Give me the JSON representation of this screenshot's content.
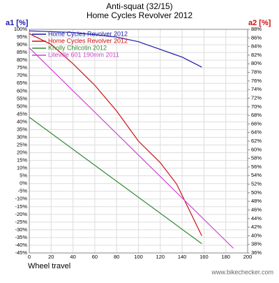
{
  "chart_data": {
    "type": "line",
    "title": "Anti-squat (32/15)",
    "subtitle": "Home Cycles Revolver 2012",
    "ylabel": "a1 [%]",
    "y2label": "a2 [%]",
    "xlabel": "Wheel travel",
    "watermark": "www.bikechecker.com",
    "grid": true,
    "legend": "upper left",
    "xlim": [
      0,
      200
    ],
    "xticks": [
      0,
      20,
      40,
      60,
      80,
      100,
      120,
      140,
      160,
      180,
      200
    ],
    "ylim": [
      -45,
      100
    ],
    "yticks": [
      {
        "value": 100,
        "label": "100%"
      },
      {
        "value": 95,
        "label": "95%"
      },
      {
        "value": 90,
        "label": "90%"
      },
      {
        "value": 85,
        "label": "85%"
      },
      {
        "value": 80,
        "label": "80%"
      },
      {
        "value": 75,
        "label": "75%"
      },
      {
        "value": 70,
        "label": "70%"
      },
      {
        "value": 65,
        "label": "65%"
      },
      {
        "value": 60,
        "label": "60%"
      },
      {
        "value": 55,
        "label": "55%"
      },
      {
        "value": 50,
        "label": "50%"
      },
      {
        "value": 45,
        "label": "45%"
      },
      {
        "value": 40,
        "label": "40%"
      },
      {
        "value": 35,
        "label": "35%"
      },
      {
        "value": 30,
        "label": "30%"
      },
      {
        "value": 25,
        "label": "25%"
      },
      {
        "value": 20,
        "label": "20%"
      },
      {
        "value": 15,
        "label": "15%"
      },
      {
        "value": 10,
        "label": "10%"
      },
      {
        "value": 5,
        "label": "5%"
      },
      {
        "value": 0,
        "label": "0%"
      },
      {
        "value": -5,
        "label": "-5%"
      },
      {
        "value": -10,
        "label": "-10%"
      },
      {
        "value": -15,
        "label": "-15%"
      },
      {
        "value": -20,
        "label": "-20%"
      },
      {
        "value": -25,
        "label": "-25%"
      },
      {
        "value": -30,
        "label": "-30%"
      },
      {
        "value": -35,
        "label": "-35%"
      },
      {
        "value": -40,
        "label": "-40%"
      },
      {
        "value": -45,
        "label": "-45%"
      }
    ],
    "y2lim": [
      36,
      88
    ],
    "y2ticks": [
      {
        "value": 88,
        "label": "88%"
      },
      {
        "value": 86,
        "label": "86%"
      },
      {
        "value": 84,
        "label": "84%"
      },
      {
        "value": 82,
        "label": "82%"
      },
      {
        "value": 80,
        "label": "80%"
      },
      {
        "value": 78,
        "label": "78%"
      },
      {
        "value": 76,
        "label": "76%"
      },
      {
        "value": 74,
        "label": "74%"
      },
      {
        "value": 72,
        "label": "72%"
      },
      {
        "value": 70,
        "label": "70%"
      },
      {
        "value": 68,
        "label": "68%"
      },
      {
        "value": 66,
        "label": "66%"
      },
      {
        "value": 64,
        "label": "64%"
      },
      {
        "value": 62,
        "label": "62%"
      },
      {
        "value": 60,
        "label": "60%"
      },
      {
        "value": 58,
        "label": "58%"
      },
      {
        "value": 56,
        "label": "56%"
      },
      {
        "value": 54,
        "label": "54%"
      },
      {
        "value": 52,
        "label": "52%"
      },
      {
        "value": 50,
        "label": "50%"
      },
      {
        "value": 48,
        "label": "48%"
      },
      {
        "value": 46,
        "label": "46%"
      },
      {
        "value": 44,
        "label": "44%"
      },
      {
        "value": 42,
        "label": "42%"
      },
      {
        "value": 40,
        "label": "40%"
      },
      {
        "value": 38,
        "label": "38%"
      },
      {
        "value": 36,
        "label": "36%"
      }
    ],
    "series": [
      {
        "name": "Home Cycles Revolver 2012",
        "color": "#1a1aa8",
        "x": [
          0,
          40,
          80,
          100,
          120,
          140,
          158
        ],
        "values": [
          99,
          98,
          95,
          92,
          87,
          82,
          75.5
        ]
      },
      {
        "name": "Home Cycles Revolver 2012",
        "color": "#cc1111",
        "axis": "y2",
        "x": [
          0,
          20,
          40,
          60,
          80,
          100,
          120,
          135,
          158
        ],
        "values": [
          87,
          84.5,
          80,
          75,
          69,
          62,
          57,
          52,
          40
        ]
      },
      {
        "name": "Knolly Chilcotin 2012",
        "color": "#338833",
        "x": [
          0,
          158
        ],
        "values": [
          43,
          -39
        ]
      },
      {
        "name": "Liteville 601 190mm 2011",
        "color": "#cc44cc",
        "x": [
          0,
          187
        ],
        "values": [
          88,
          -42
        ]
      }
    ]
  }
}
